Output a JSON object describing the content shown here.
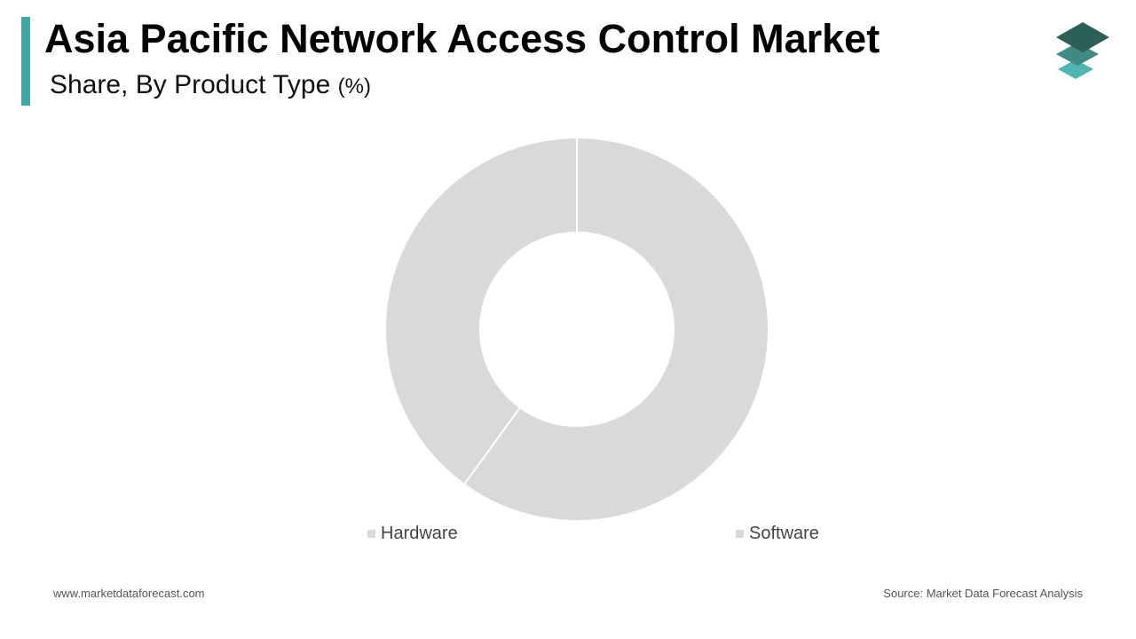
{
  "header": {
    "title": "Asia Pacific Network Access Control Market",
    "subtitle": "Share, By Product Type",
    "unit": "(%)"
  },
  "brand": {
    "logo_icon": "layered-stack-icon",
    "accent_color": "#3fa8a4",
    "logo_colors": [
      "#2c5f57",
      "#3f8a82",
      "#4fb5b0"
    ]
  },
  "chart_data": {
    "type": "pie",
    "donut": true,
    "title": "Asia Pacific Network Access Control Market",
    "subtitle": "Share, By Product Type (%)",
    "categories": [
      "Hardware",
      "Software"
    ],
    "values": [
      40,
      60
    ],
    "colors": [
      "#d9d9d9",
      "#d9d9d9"
    ],
    "start_angle_deg": 0,
    "direction": "clockwise",
    "legend_position": "bottom"
  },
  "footer": {
    "website": "www.marketdataforecast.com",
    "source": "Source: Market Data Forecast Analysis"
  }
}
